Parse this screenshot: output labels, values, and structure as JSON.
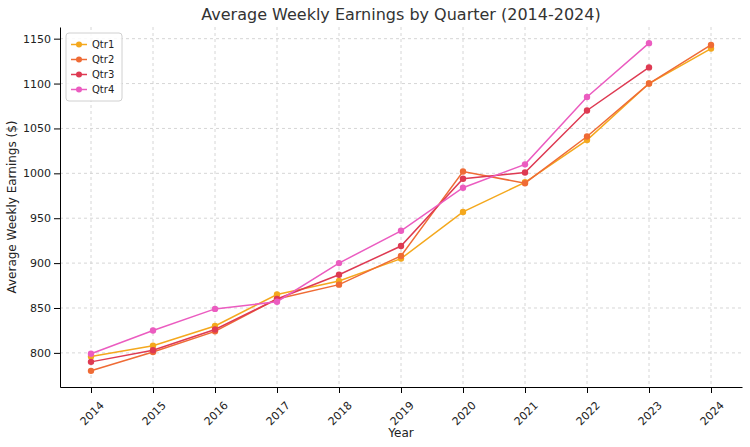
{
  "chart_data": {
    "type": "line",
    "title": "Average Weekly Earnings by Quarter (2014-2024)",
    "x_label": "Year",
    "y_label": "Average Weekly Earnings ($)",
    "x": [
      2014,
      2015,
      2016,
      2017,
      2018,
      2019,
      2020,
      2021,
      2022,
      2023,
      2024
    ],
    "series": [
      {
        "name": "Qtr1",
        "color": "#f4a81d",
        "marker": "circle",
        "line_style": "solid",
        "values": [
          796,
          808,
          830,
          865,
          880,
          905,
          957,
          990,
          1037,
          1100,
          1139
        ]
      },
      {
        "name": "Qtr2",
        "color": "#ef6b35",
        "marker": "circle",
        "line_style": "solid",
        "values": [
          780,
          801,
          824,
          860,
          876,
          908,
          1002,
          989,
          1041,
          1100,
          1143
        ]
      },
      {
        "name": "Qtr3",
        "color": "#de3a52",
        "marker": "circle",
        "line_style": "solid",
        "values": [
          790,
          803,
          826,
          860,
          887,
          919,
          994,
          1001,
          1070,
          1118,
          null
        ]
      },
      {
        "name": "Qtr4",
        "color": "#eb5cc0",
        "marker": "circle",
        "line_style": "solid",
        "values": [
          799,
          825,
          849,
          857,
          900,
          936,
          984,
          1010,
          1085,
          1145,
          null
        ]
      }
    ],
    "xlim": [
      2013.5,
      2024.5
    ],
    "xticks": [
      2014,
      2015,
      2016,
      2017,
      2018,
      2019,
      2020,
      2021,
      2022,
      2023,
      2024
    ],
    "ylim": [
      762,
      1163
    ],
    "yticks": [
      800,
      850,
      900,
      950,
      1000,
      1050,
      1100,
      1150
    ],
    "grid": true,
    "legend": "upper-left"
  }
}
